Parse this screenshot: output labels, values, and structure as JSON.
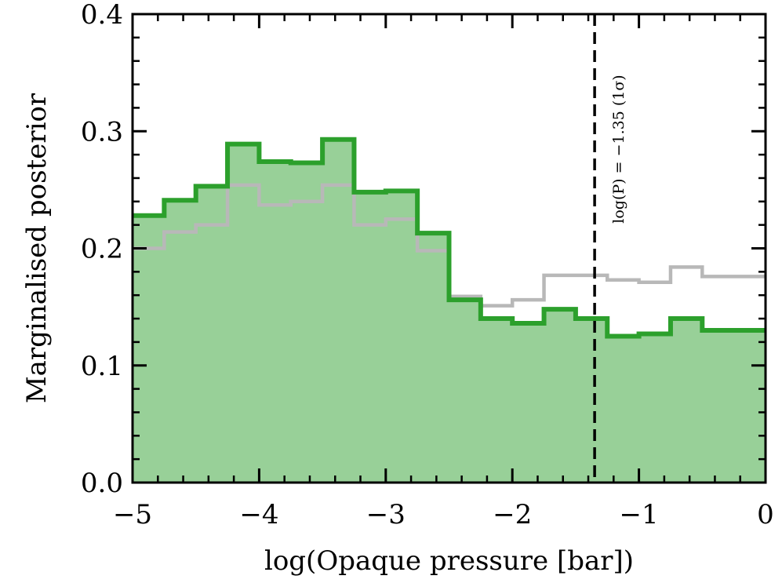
{
  "chart_data": {
    "type": "histogram",
    "xlabel": "log(Opaque pressure [bar])",
    "ylabel": "Marginalised posterior",
    "xlim": [
      -5,
      0
    ],
    "ylim": [
      0,
      0.4
    ],
    "grid": false,
    "bin_edges": [
      -5,
      -4.75,
      -4.5,
      -4.25,
      -4.0,
      -3.75,
      -3.5,
      -3.25,
      -3.0,
      -2.75,
      -2.5,
      -2.25,
      -2.0,
      -1.75,
      -1.5,
      -1.25,
      -1.0,
      -0.75,
      -0.5,
      -0.25,
      0
    ],
    "series": [
      {
        "color": "#2ca02c",
        "fill": "#98d098",
        "values": [
          0.228,
          0.241,
          0.253,
          0.289,
          0.274,
          0.273,
          0.293,
          0.248,
          0.249,
          0.213,
          0.156,
          0.14,
          0.136,
          0.148,
          0.14,
          0.125,
          0.127,
          0.14,
          0.13,
          0.13
        ]
      },
      {
        "color": "#b8b8b8",
        "values": [
          0.2,
          0.214,
          0.22,
          0.254,
          0.237,
          0.24,
          0.254,
          0.22,
          0.225,
          0.198,
          0.159,
          0.151,
          0.156,
          0.177,
          0.177,
          0.173,
          0.171,
          0.184,
          0.176,
          0.176
        ]
      }
    ],
    "xticks": [
      -5,
      -4,
      -3,
      -2,
      -1,
      0
    ],
    "xtick_labels": [
      "−5",
      "−4",
      "−3",
      "−2",
      "−1",
      "0"
    ],
    "yticks": [
      0.0,
      0.1,
      0.2,
      0.3,
      0.4
    ],
    "ytick_labels": [
      "0.0",
      "0.1",
      "0.2",
      "0.3",
      "0.4"
    ],
    "vline": {
      "x": -1.35,
      "style": "dashed",
      "color": "#000000",
      "label": "log(P) = −1.35 (1σ)"
    }
  }
}
